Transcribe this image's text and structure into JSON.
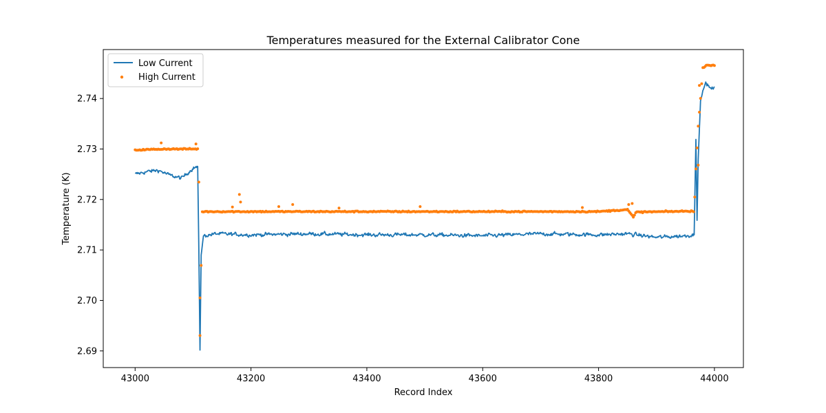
{
  "chart_data": {
    "type": "line",
    "title": "Temperatures measured for the External Calibrator Cone",
    "xlabel": "Record Index",
    "ylabel": "Temperature (K)",
    "xlim": [
      42945,
      44050
    ],
    "ylim": [
      2.6867,
      2.7497
    ],
    "x_ticks": [
      43000,
      43200,
      43400,
      43600,
      43800,
      44000
    ],
    "x_tick_labels": [
      "43000",
      "43200",
      "43400",
      "43600",
      "43800",
      "44000"
    ],
    "y_ticks": [
      2.69,
      2.7,
      2.71,
      2.72,
      2.73,
      2.74
    ],
    "y_tick_labels": [
      "2.69",
      "2.70",
      "2.71",
      "2.72",
      "2.73",
      "2.74"
    ],
    "grid": false,
    "legend_position": "top-left",
    "series": [
      {
        "name": "Low Current",
        "style": "line",
        "color": "#1f77b4",
        "anchors": [
          [
            43000,
            2.725
          ],
          [
            43020,
            2.7255
          ],
          [
            43040,
            2.7258
          ],
          [
            43060,
            2.7248
          ],
          [
            43080,
            2.7242
          ],
          [
            43100,
            2.7262
          ],
          [
            43108,
            2.7265
          ],
          [
            43110,
            2.71
          ],
          [
            43112,
            2.6902
          ],
          [
            43114,
            2.709
          ],
          [
            43118,
            2.7128
          ],
          [
            43140,
            2.7132
          ],
          [
            43200,
            2.713
          ],
          [
            43300,
            2.7132
          ],
          [
            43400,
            2.713
          ],
          [
            43500,
            2.713
          ],
          [
            43600,
            2.7128
          ],
          [
            43700,
            2.7132
          ],
          [
            43800,
            2.713
          ],
          [
            43850,
            2.7132
          ],
          [
            43900,
            2.7125
          ],
          [
            43950,
            2.7128
          ],
          [
            43965,
            2.713
          ],
          [
            43968,
            2.732
          ],
          [
            43970,
            2.716
          ],
          [
            43972,
            2.728
          ],
          [
            43976,
            2.7395
          ],
          [
            43980,
            2.7415
          ],
          [
            43985,
            2.7432
          ],
          [
            43992,
            2.742
          ],
          [
            44000,
            2.742
          ]
        ]
      },
      {
        "name": "High Current",
        "style": "scatter",
        "color": "#ff7f0e",
        "anchors": [
          [
            43000,
            2.7298
          ],
          [
            43050,
            2.73
          ],
          [
            43108,
            2.73
          ],
          [
            43110,
            2.7235
          ],
          [
            43112,
            2.693
          ],
          [
            43114,
            2.707
          ],
          [
            43116,
            2.7175
          ],
          [
            43120,
            2.7176
          ],
          [
            43200,
            2.7176
          ],
          [
            43400,
            2.7176
          ],
          [
            43600,
            2.7176
          ],
          [
            43800,
            2.7176
          ],
          [
            43850,
            2.718
          ],
          [
            43860,
            2.7165
          ],
          [
            43865,
            2.7175
          ],
          [
            43965,
            2.7177
          ],
          [
            43968,
            2.726
          ],
          [
            43972,
            2.7345
          ],
          [
            43976,
            2.74
          ],
          [
            43980,
            2.746
          ],
          [
            43985,
            2.7466
          ],
          [
            44000,
            2.7466
          ]
        ],
        "outliers": [
          [
            43045,
            2.7312
          ],
          [
            43105,
            2.731
          ],
          [
            43112,
            2.7005
          ],
          [
            43180,
            2.721
          ],
          [
            43182,
            2.7195
          ],
          [
            43168,
            2.7185
          ],
          [
            43248,
            2.7186
          ],
          [
            43272,
            2.719
          ],
          [
            43352,
            2.7183
          ],
          [
            43492,
            2.7186
          ],
          [
            43772,
            2.7184
          ],
          [
            43852,
            2.719
          ],
          [
            43858,
            2.7192
          ],
          [
            43972,
            2.7268
          ],
          [
            43974,
            2.7426
          ]
        ]
      }
    ]
  }
}
